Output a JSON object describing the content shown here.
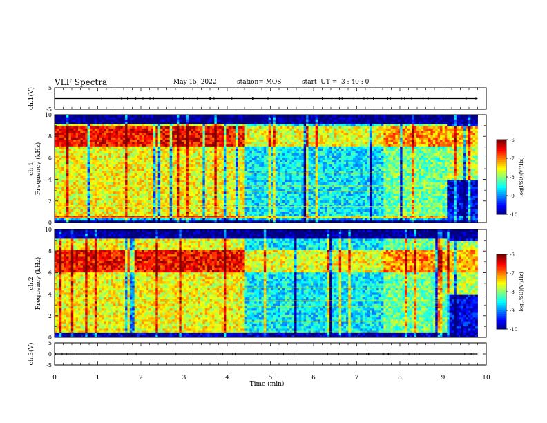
{
  "header": {
    "title": "VLF Spectra",
    "date": "May 15, 2022",
    "station": "station= MOS",
    "start_ut": "start  UT =  3 : 40 : 0"
  },
  "chart_data": [
    {
      "type": "line",
      "panel": "ch1-waveform",
      "ylabel": "ch.1(V)",
      "ylim": [
        -5,
        5
      ],
      "yticks": [
        "5",
        "-5"
      ],
      "xlim": [
        0,
        10
      ],
      "x": [
        0,
        9.8
      ],
      "values": [
        0,
        0
      ]
    },
    {
      "type": "heatmap",
      "panel": "ch1-spectrogram",
      "ylabel": "ch.1\nFrequency  (kHz)",
      "ylim": [
        0,
        10
      ],
      "yticks": [
        "0",
        "2",
        "4",
        "6",
        "8",
        "10"
      ],
      "xlim": [
        0,
        10
      ],
      "data_xmax": 9.8,
      "colorbar": {
        "label": "log(PSD)(V²/Hz)",
        "range": [
          -10,
          -6
        ],
        "ticks": [
          "-6",
          "-7",
          "-8",
          "-9",
          "-10"
        ]
      }
    },
    {
      "type": "heatmap",
      "panel": "ch2-spectrogram",
      "ylabel": "ch.2\nFrequency  (kHz)",
      "ylim": [
        0,
        10
      ],
      "yticks": [
        "0",
        "2",
        "4",
        "6",
        "8",
        "10"
      ],
      "xlim": [
        0,
        10
      ],
      "data_xmax": 9.8,
      "colorbar": {
        "label": "log(PSD)(V²/Hz)",
        "range": [
          -10,
          -6
        ],
        "ticks": [
          "-6",
          "-7",
          "-8",
          "-9",
          "-10"
        ]
      }
    },
    {
      "type": "line",
      "panel": "ch3-waveform",
      "ylabel": "ch.3(V)",
      "ylim": [
        -5,
        5
      ],
      "yticks": [
        "5",
        "0",
        "-5"
      ],
      "xlim": [
        0,
        10
      ],
      "x": [
        0,
        9.8
      ],
      "values": [
        0,
        0
      ]
    }
  ],
  "xaxis": {
    "label": "Time  (min)",
    "ticks": [
      "0",
      "1",
      "2",
      "3",
      "4",
      "5",
      "6",
      "7",
      "8",
      "9",
      "10"
    ]
  },
  "colors": {
    "background": "#ffffff",
    "axis": "#000000",
    "spectro_low": "#000a6e",
    "spectro_high": "#ff0000"
  }
}
